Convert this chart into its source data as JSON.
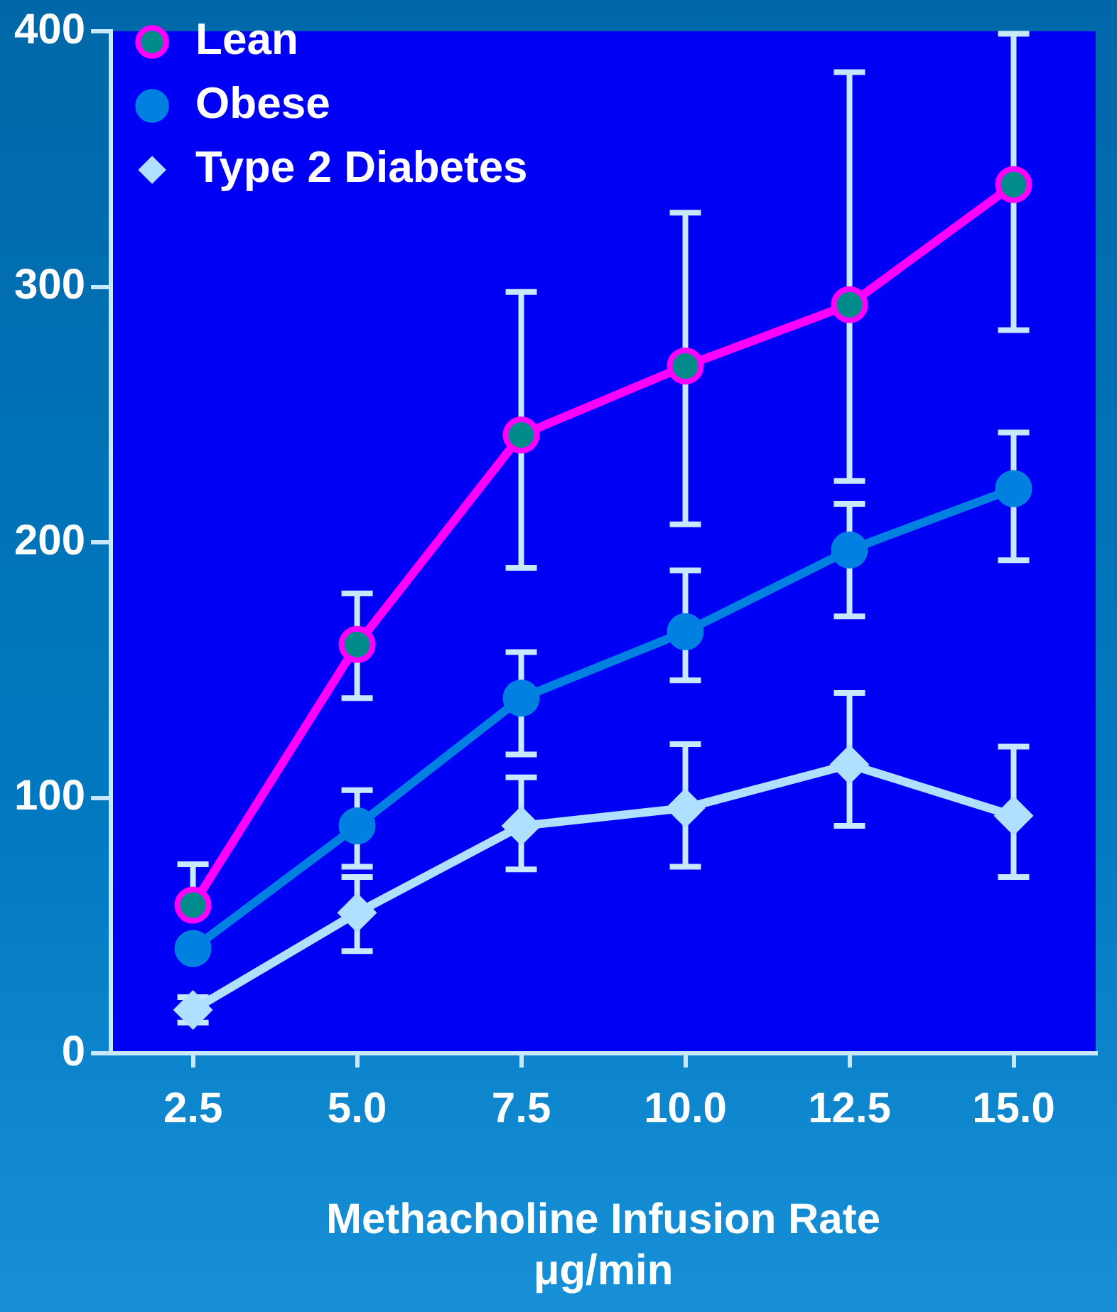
{
  "chart_data": {
    "type": "line",
    "xlabel": "Methacholine Infusion Rate\nμg/min",
    "categories": [
      "2.5",
      "5.0",
      "7.5",
      "10.0",
      "12.5",
      "15.0"
    ],
    "ylim": [
      0,
      400
    ],
    "yticks": [
      0,
      100,
      200,
      300,
      400
    ],
    "grid": false,
    "legend": "top left",
    "line_style": "solid",
    "series": [
      {
        "name": "Lean",
        "color": "#ff00ff",
        "marker": "circle",
        "values": [
          58,
          160,
          242,
          269,
          293,
          340
        ],
        "errors": [
          [
            58,
            74
          ],
          [
            139,
            180
          ],
          [
            190,
            298
          ],
          [
            207,
            329
          ],
          [
            224,
            384
          ],
          [
            283,
            399
          ]
        ]
      },
      {
        "name": "Obese",
        "color": "#0080e0",
        "marker": "circle",
        "values": [
          41,
          89,
          139,
          165,
          197,
          221
        ],
        "errors": [
          null,
          [
            73,
            103
          ],
          [
            117,
            157
          ],
          [
            146,
            189
          ],
          [
            171,
            215
          ],
          [
            193,
            243
          ]
        ]
      },
      {
        "name": "Type 2 Diabetes",
        "color": "#b0e0ff",
        "marker": "diamond",
        "values": [
          17,
          55,
          89,
          96,
          113,
          93
        ],
        "errors": [
          [
            12,
            22
          ],
          [
            40,
            69
          ],
          [
            72,
            108
          ],
          [
            73,
            121
          ],
          [
            89,
            141
          ],
          [
            69,
            120
          ]
        ]
      }
    ]
  }
}
